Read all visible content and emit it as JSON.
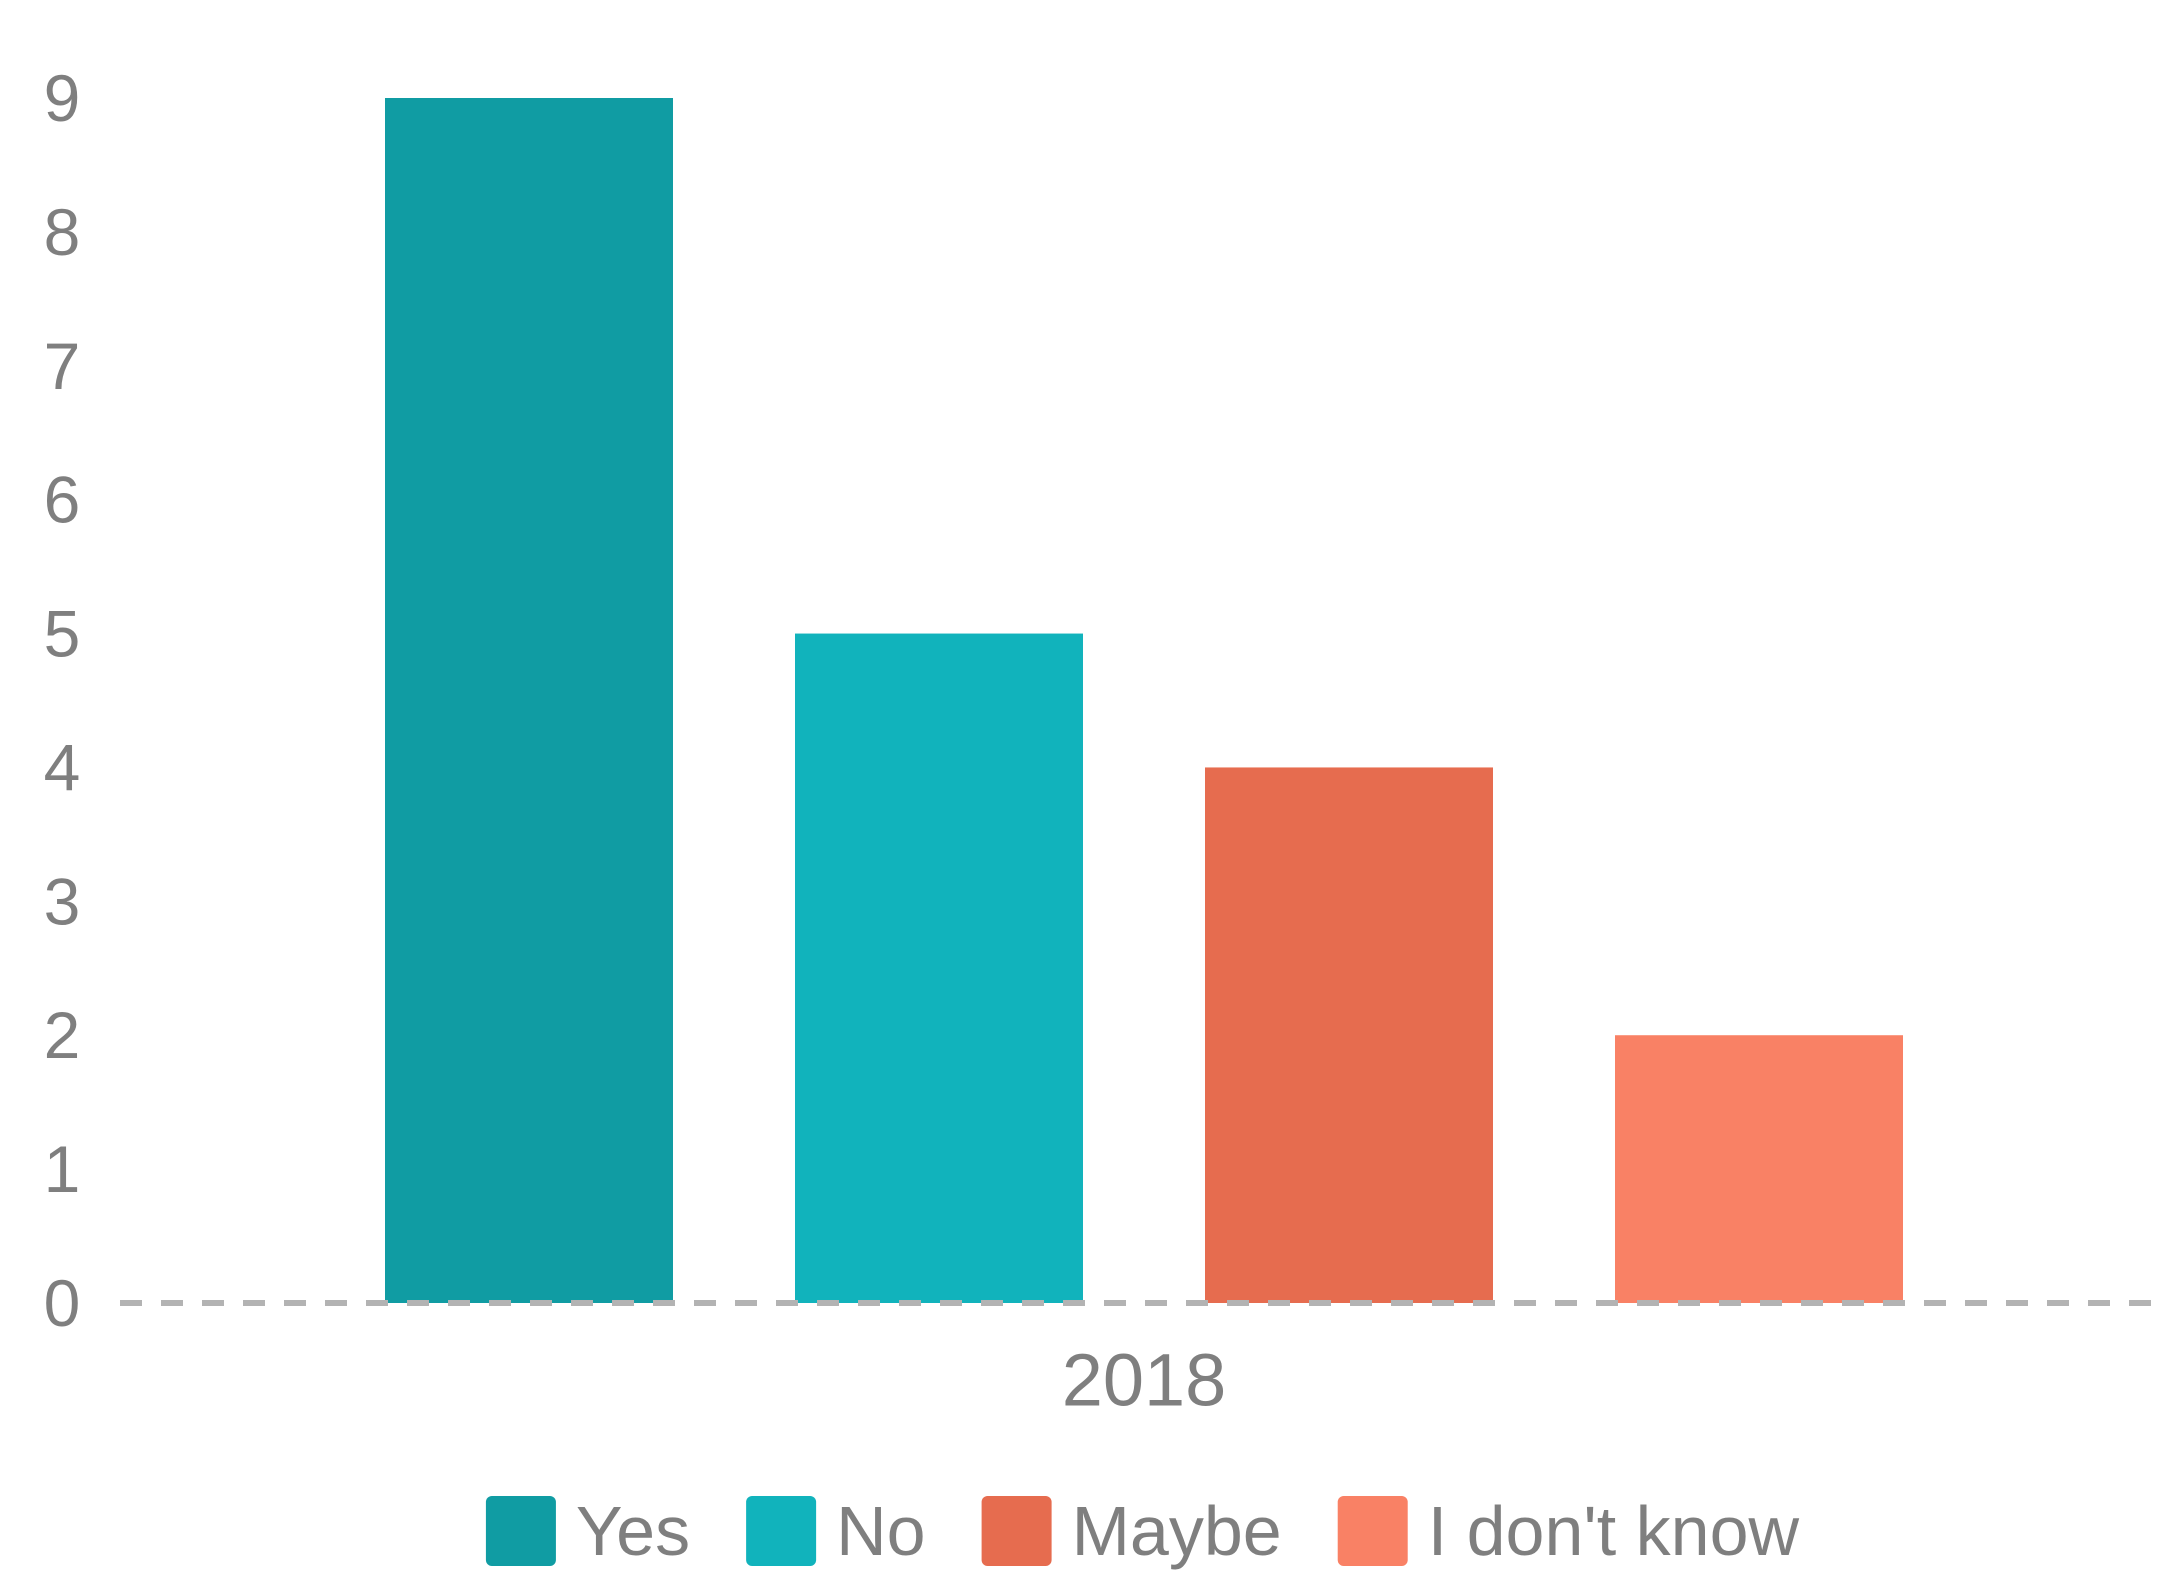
{
  "chart_data": {
    "type": "bar",
    "title": "",
    "xlabel": "",
    "ylabel": "",
    "categories": [
      "2018"
    ],
    "series": [
      {
        "name": "Yes",
        "values": [
          9
        ],
        "color": "#109CA3"
      },
      {
        "name": "No",
        "values": [
          5
        ],
        "color": "#11B3BC"
      },
      {
        "name": "Maybe",
        "values": [
          4
        ],
        "color": "#E66C4F"
      },
      {
        "name": "I don't know",
        "values": [
          2
        ],
        "color": "#F98165"
      }
    ],
    "ylim": [
      0,
      9
    ],
    "yticks": [
      "0",
      "1",
      "2",
      "3",
      "4",
      "5",
      "6",
      "7",
      "8",
      "9"
    ],
    "grid": false,
    "baseline_style": "dashed",
    "legend_position": "bottom-center",
    "text_color": "#7F7F7F",
    "baseline_color": "#B3B3B3"
  }
}
